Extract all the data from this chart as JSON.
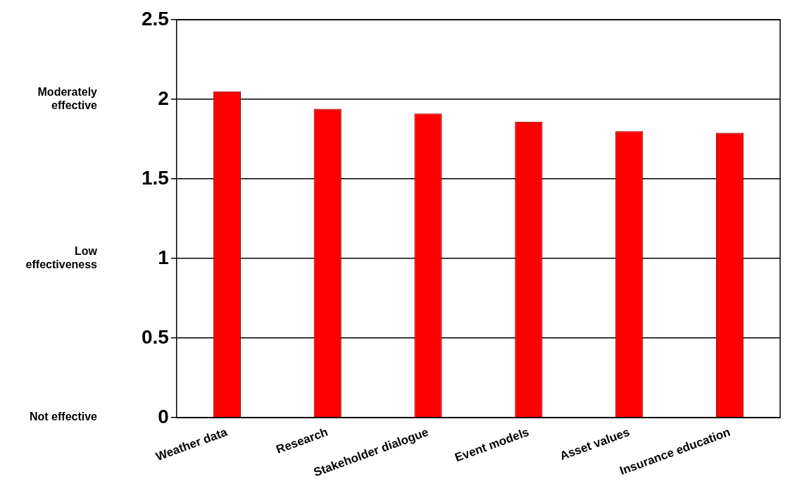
{
  "chart_data": {
    "type": "bar",
    "categories": [
      "Weather data",
      "Research",
      "Stakeholder dialogue",
      "Event models",
      "Asset values",
      "Insurance education"
    ],
    "values": [
      2.05,
      1.94,
      1.91,
      1.86,
      1.8,
      1.79
    ],
    "color": "#ff0000",
    "ylim": [
      0,
      2.5
    ],
    "yticks": [
      0,
      0.5,
      1,
      1.5,
      2,
      2.5
    ],
    "annotations": [
      "Not effective",
      "Low\neffectiveness",
      "Moderately\neffective"
    ],
    "grid": "y",
    "legend": false
  }
}
